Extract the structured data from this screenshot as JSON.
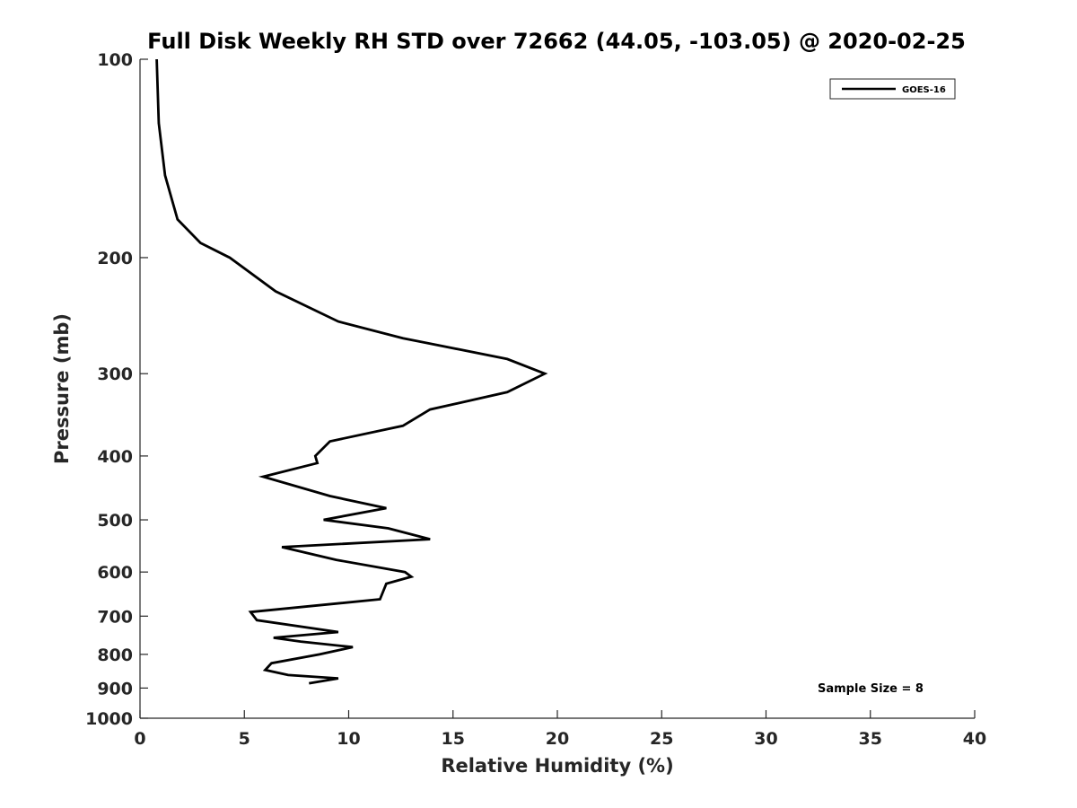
{
  "chart_data": {
    "type": "line",
    "title": "Full Disk Weekly RH STD over 72662 (44.05, -103.05) @ 2020-02-25",
    "xlabel": "Relative Humidity (%)",
    "ylabel": "Pressure (mb)",
    "xlim": [
      0,
      40
    ],
    "ylim": [
      100,
      1000
    ],
    "yscale": "log",
    "y_reversed": true,
    "x_ticks": [
      0,
      5,
      10,
      15,
      20,
      25,
      30,
      35,
      40
    ],
    "y_ticks": [
      100,
      200,
      300,
      400,
      500,
      600,
      700,
      800,
      900,
      1000
    ],
    "grid": false,
    "legend_position": "top-right",
    "annotation": "Sample Size = 8",
    "series": [
      {
        "name": "GOES-16",
        "color": "#000000",
        "points": [
          [
            0.8,
            100
          ],
          [
            0.9,
            125
          ],
          [
            1.2,
            150
          ],
          [
            1.8,
            175
          ],
          [
            2.9,
            190
          ],
          [
            4.3,
            200
          ],
          [
            6.5,
            225
          ],
          [
            9.5,
            250
          ],
          [
            12.6,
            265
          ],
          [
            17.6,
            285
          ],
          [
            19.4,
            300
          ],
          [
            17.6,
            320
          ],
          [
            13.9,
            340
          ],
          [
            12.6,
            360
          ],
          [
            9.1,
            380
          ],
          [
            8.4,
            400
          ],
          [
            8.5,
            410
          ],
          [
            5.9,
            430
          ],
          [
            9.1,
            460
          ],
          [
            11.8,
            480
          ],
          [
            8.8,
            500
          ],
          [
            11.9,
            515
          ],
          [
            13.9,
            535
          ],
          [
            6.8,
            550
          ],
          [
            9.4,
            575
          ],
          [
            12.7,
            600
          ],
          [
            13.0,
            610
          ],
          [
            11.8,
            625
          ],
          [
            11.5,
            660
          ],
          [
            5.3,
            690
          ],
          [
            5.6,
            710
          ],
          [
            9.5,
            740
          ],
          [
            6.4,
            755
          ],
          [
            7.7,
            765
          ],
          [
            10.2,
            780
          ],
          [
            8.6,
            800
          ],
          [
            6.3,
            825
          ],
          [
            6.0,
            845
          ],
          [
            7.1,
            860
          ],
          [
            9.5,
            870
          ],
          [
            8.1,
            885
          ]
        ]
      }
    ]
  }
}
